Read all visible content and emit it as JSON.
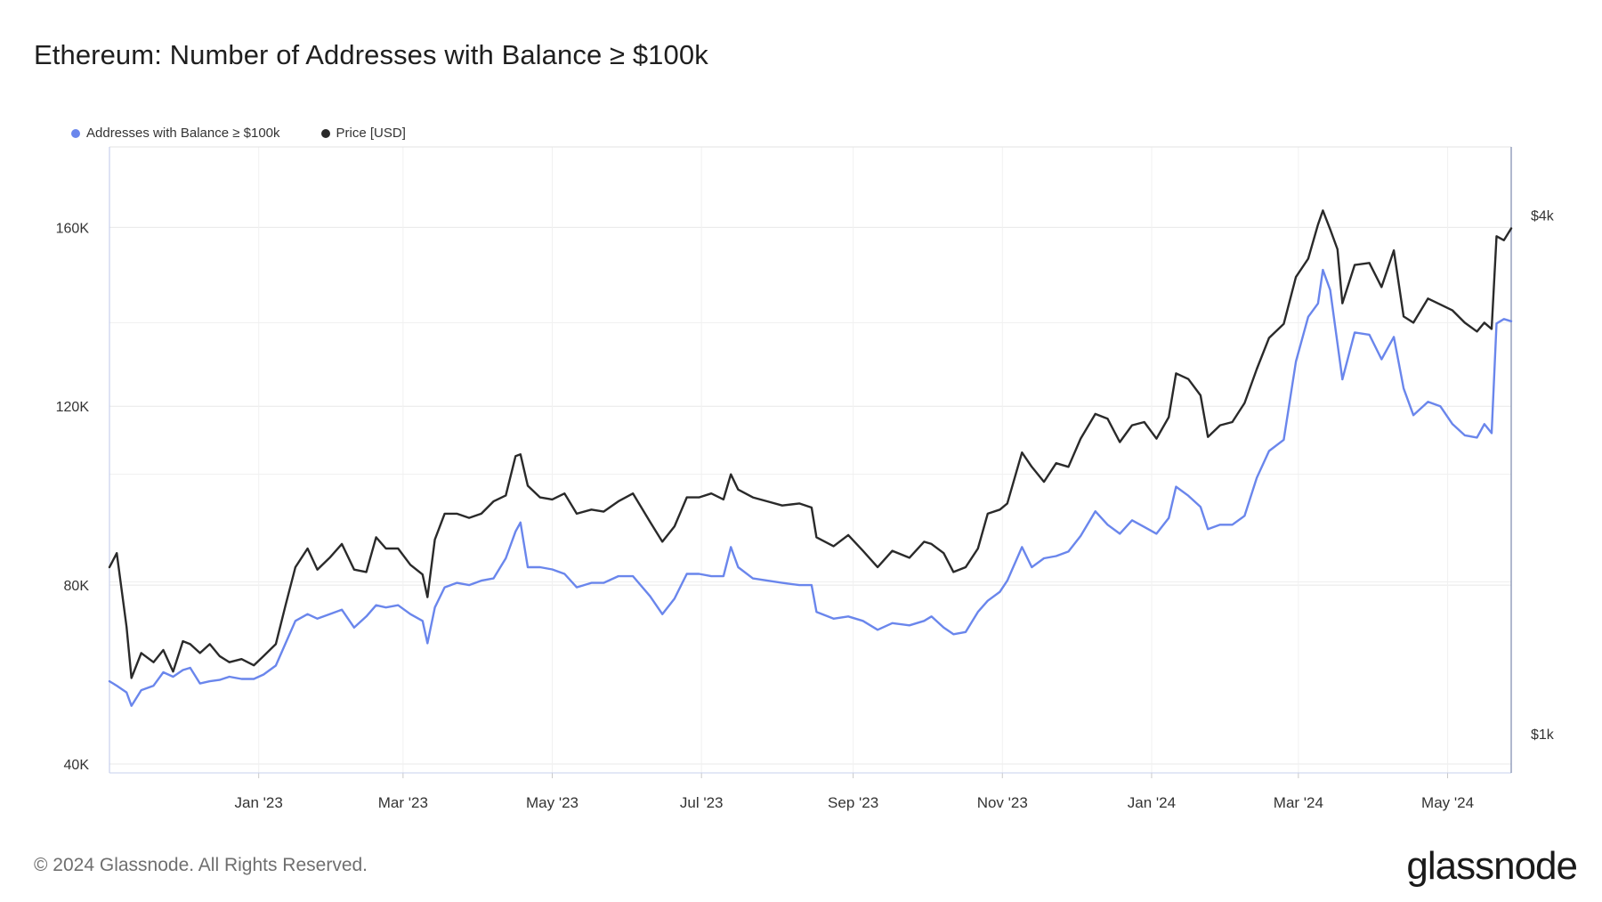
{
  "header": {
    "title": "Ethereum: Number of Addresses with Balance ≥ $100k"
  },
  "footer": {
    "copyright": "© 2024 Glassnode. All Rights Reserved.",
    "brand": "glassnode"
  },
  "colors": {
    "addresses": "#6a86ec",
    "price": "#2a2a2a",
    "grid": "#e8e8e8",
    "axis": "#c7d0ec"
  },
  "chart_data": {
    "type": "line",
    "title": "Ethereum: Number of Addresses with Balance ≥ $100k",
    "grid": true,
    "legend_position": "top-left",
    "x_ticks": [
      "Jan '23",
      "Mar '23",
      "May '23",
      "Jul '23",
      "Sep '23",
      "Nov '23",
      "Jan '24",
      "Mar '24",
      "May '24"
    ],
    "x_range": [
      "2022-11-01",
      "2024-05-27"
    ],
    "y_left": {
      "ticks": [
        40000,
        80000,
        120000,
        160000
      ],
      "tick_labels": [
        "40K",
        "80K",
        "120K",
        "160K"
      ],
      "range": [
        38000,
        178000
      ]
    },
    "y_right": {
      "ticks": [
        1000,
        4000
      ],
      "tick_labels": [
        "$1k",
        "$4k"
      ],
      "range": [
        900,
        4800
      ]
    },
    "series": [
      {
        "name": "Addresses with Balance ≥ $100k",
        "axis": "left",
        "color": "#6a86ec",
        "points": [
          [
            "2022-11-01",
            58500
          ],
          [
            "2022-11-04",
            57500
          ],
          [
            "2022-11-08",
            56000
          ],
          [
            "2022-11-10",
            53000
          ],
          [
            "2022-11-14",
            56500
          ],
          [
            "2022-11-19",
            57500
          ],
          [
            "2022-11-23",
            60500
          ],
          [
            "2022-11-27",
            59500
          ],
          [
            "2022-12-01",
            61000
          ],
          [
            "2022-12-04",
            61500
          ],
          [
            "2022-12-08",
            58000
          ],
          [
            "2022-12-12",
            58500
          ],
          [
            "2022-12-16",
            58800
          ],
          [
            "2022-12-20",
            59500
          ],
          [
            "2022-12-25",
            59000
          ],
          [
            "2022-12-30",
            59000
          ],
          [
            "2023-01-03",
            60000
          ],
          [
            "2023-01-08",
            62000
          ],
          [
            "2023-01-12",
            67000
          ],
          [
            "2023-01-16",
            72000
          ],
          [
            "2023-01-21",
            73500
          ],
          [
            "2023-01-25",
            72500
          ],
          [
            "2023-01-30",
            73500
          ],
          [
            "2023-02-04",
            74500
          ],
          [
            "2023-02-09",
            70500
          ],
          [
            "2023-02-14",
            73000
          ],
          [
            "2023-02-18",
            75500
          ],
          [
            "2023-02-22",
            75000
          ],
          [
            "2023-02-27",
            75500
          ],
          [
            "2023-03-04",
            73500
          ],
          [
            "2023-03-09",
            72000
          ],
          [
            "2023-03-11",
            67000
          ],
          [
            "2023-03-14",
            75000
          ],
          [
            "2023-03-18",
            79500
          ],
          [
            "2023-03-23",
            80500
          ],
          [
            "2023-03-28",
            80000
          ],
          [
            "2023-04-02",
            81000
          ],
          [
            "2023-04-07",
            81500
          ],
          [
            "2023-04-12",
            86000
          ],
          [
            "2023-04-16",
            92000
          ],
          [
            "2023-04-18",
            94000
          ],
          [
            "2023-04-21",
            84000
          ],
          [
            "2023-04-26",
            84000
          ],
          [
            "2023-05-01",
            83500
          ],
          [
            "2023-05-06",
            82500
          ],
          [
            "2023-05-11",
            79500
          ],
          [
            "2023-05-17",
            80500
          ],
          [
            "2023-05-22",
            80500
          ],
          [
            "2023-05-28",
            82000
          ],
          [
            "2023-06-03",
            82000
          ],
          [
            "2023-06-10",
            77500
          ],
          [
            "2023-06-15",
            73500
          ],
          [
            "2023-06-20",
            77000
          ],
          [
            "2023-06-25",
            82500
          ],
          [
            "2023-06-30",
            82500
          ],
          [
            "2023-07-05",
            82000
          ],
          [
            "2023-07-10",
            82000
          ],
          [
            "2023-07-13",
            88500
          ],
          [
            "2023-07-16",
            84000
          ],
          [
            "2023-07-22",
            81500
          ],
          [
            "2023-07-28",
            81000
          ],
          [
            "2023-08-03",
            80500
          ],
          [
            "2023-08-10",
            80000
          ],
          [
            "2023-08-15",
            80000
          ],
          [
            "2023-08-17",
            74000
          ],
          [
            "2023-08-24",
            72500
          ],
          [
            "2023-08-30",
            73000
          ],
          [
            "2023-09-05",
            72000
          ],
          [
            "2023-09-11",
            70000
          ],
          [
            "2023-09-17",
            71500
          ],
          [
            "2023-09-24",
            71000
          ],
          [
            "2023-09-30",
            72000
          ],
          [
            "2023-10-03",
            73000
          ],
          [
            "2023-10-08",
            70500
          ],
          [
            "2023-10-12",
            69000
          ],
          [
            "2023-10-17",
            69500
          ],
          [
            "2023-10-22",
            74000
          ],
          [
            "2023-10-26",
            76500
          ],
          [
            "2023-10-31",
            78500
          ],
          [
            "2023-11-03",
            81000
          ],
          [
            "2023-11-09",
            88500
          ],
          [
            "2023-11-13",
            84000
          ],
          [
            "2023-11-18",
            86000
          ],
          [
            "2023-11-23",
            86500
          ],
          [
            "2023-11-28",
            87500
          ],
          [
            "2023-12-03",
            91000
          ],
          [
            "2023-12-09",
            96500
          ],
          [
            "2023-12-14",
            93500
          ],
          [
            "2023-12-19",
            91500
          ],
          [
            "2023-12-24",
            94500
          ],
          [
            "2023-12-29",
            93000
          ],
          [
            "2024-01-03",
            91500
          ],
          [
            "2024-01-08",
            95000
          ],
          [
            "2024-01-11",
            102000
          ],
          [
            "2024-01-16",
            100000
          ],
          [
            "2024-01-21",
            97500
          ],
          [
            "2024-01-24",
            92500
          ],
          [
            "2024-01-29",
            93500
          ],
          [
            "2024-02-03",
            93500
          ],
          [
            "2024-02-08",
            95500
          ],
          [
            "2024-02-13",
            104000
          ],
          [
            "2024-02-18",
            110000
          ],
          [
            "2024-02-24",
            112500
          ],
          [
            "2024-02-29",
            130000
          ],
          [
            "2024-03-05",
            140000
          ],
          [
            "2024-03-09",
            143000
          ],
          [
            "2024-03-11",
            150500
          ],
          [
            "2024-03-14",
            146000
          ],
          [
            "2024-03-17",
            134000
          ],
          [
            "2024-03-19",
            126000
          ],
          [
            "2024-03-24",
            136500
          ],
          [
            "2024-03-30",
            136000
          ],
          [
            "2024-04-04",
            130500
          ],
          [
            "2024-04-09",
            135500
          ],
          [
            "2024-04-13",
            124000
          ],
          [
            "2024-04-17",
            118000
          ],
          [
            "2024-04-23",
            121000
          ],
          [
            "2024-04-28",
            120000
          ],
          [
            "2024-05-03",
            116000
          ],
          [
            "2024-05-08",
            113500
          ],
          [
            "2024-05-13",
            113000
          ],
          [
            "2024-05-16",
            116000
          ],
          [
            "2024-05-19",
            114000
          ],
          [
            "2024-05-21",
            138500
          ],
          [
            "2024-05-24",
            139500
          ],
          [
            "2024-05-27",
            139000
          ]
        ]
      },
      {
        "name": "Price [USD]",
        "axis": "right",
        "color": "#2a2a2a",
        "points": [
          [
            "2022-11-01",
            1560
          ],
          [
            "2022-11-04",
            1620
          ],
          [
            "2022-11-08",
            1330
          ],
          [
            "2022-11-10",
            1160
          ],
          [
            "2022-11-14",
            1240
          ],
          [
            "2022-11-19",
            1210
          ],
          [
            "2022-11-23",
            1250
          ],
          [
            "2022-11-27",
            1180
          ],
          [
            "2022-12-01",
            1280
          ],
          [
            "2022-12-04",
            1270
          ],
          [
            "2022-12-08",
            1240
          ],
          [
            "2022-12-12",
            1270
          ],
          [
            "2022-12-16",
            1230
          ],
          [
            "2022-12-20",
            1210
          ],
          [
            "2022-12-25",
            1220
          ],
          [
            "2022-12-30",
            1200
          ],
          [
            "2023-01-03",
            1230
          ],
          [
            "2023-01-08",
            1270
          ],
          [
            "2023-01-12",
            1410
          ],
          [
            "2023-01-16",
            1560
          ],
          [
            "2023-01-21",
            1640
          ],
          [
            "2023-01-25",
            1550
          ],
          [
            "2023-01-30",
            1600
          ],
          [
            "2023-02-04",
            1660
          ],
          [
            "2023-02-09",
            1550
          ],
          [
            "2023-02-14",
            1540
          ],
          [
            "2023-02-18",
            1690
          ],
          [
            "2023-02-22",
            1640
          ],
          [
            "2023-02-27",
            1640
          ],
          [
            "2023-03-04",
            1570
          ],
          [
            "2023-03-09",
            1530
          ],
          [
            "2023-03-11",
            1440
          ],
          [
            "2023-03-14",
            1680
          ],
          [
            "2023-03-18",
            1800
          ],
          [
            "2023-03-23",
            1800
          ],
          [
            "2023-03-28",
            1780
          ],
          [
            "2023-04-02",
            1800
          ],
          [
            "2023-04-07",
            1860
          ],
          [
            "2023-04-12",
            1890
          ],
          [
            "2023-04-16",
            2100
          ],
          [
            "2023-04-18",
            2110
          ],
          [
            "2023-04-21",
            1940
          ],
          [
            "2023-04-26",
            1880
          ],
          [
            "2023-05-01",
            1870
          ],
          [
            "2023-05-06",
            1900
          ],
          [
            "2023-05-11",
            1800
          ],
          [
            "2023-05-17",
            1820
          ],
          [
            "2023-05-22",
            1810
          ],
          [
            "2023-05-28",
            1860
          ],
          [
            "2023-06-03",
            1900
          ],
          [
            "2023-06-10",
            1760
          ],
          [
            "2023-06-15",
            1670
          ],
          [
            "2023-06-20",
            1740
          ],
          [
            "2023-06-25",
            1880
          ],
          [
            "2023-06-30",
            1880
          ],
          [
            "2023-07-05",
            1900
          ],
          [
            "2023-07-10",
            1870
          ],
          [
            "2023-07-13",
            2000
          ],
          [
            "2023-07-16",
            1920
          ],
          [
            "2023-07-22",
            1880
          ],
          [
            "2023-07-28",
            1860
          ],
          [
            "2023-08-03",
            1840
          ],
          [
            "2023-08-10",
            1850
          ],
          [
            "2023-08-15",
            1830
          ],
          [
            "2023-08-17",
            1690
          ],
          [
            "2023-08-24",
            1650
          ],
          [
            "2023-08-30",
            1700
          ],
          [
            "2023-09-05",
            1630
          ],
          [
            "2023-09-11",
            1560
          ],
          [
            "2023-09-17",
            1630
          ],
          [
            "2023-09-24",
            1600
          ],
          [
            "2023-09-30",
            1670
          ],
          [
            "2023-10-03",
            1660
          ],
          [
            "2023-10-08",
            1620
          ],
          [
            "2023-10-12",
            1540
          ],
          [
            "2023-10-17",
            1560
          ],
          [
            "2023-10-22",
            1640
          ],
          [
            "2023-10-26",
            1800
          ],
          [
            "2023-10-31",
            1820
          ],
          [
            "2023-11-03",
            1850
          ],
          [
            "2023-11-09",
            2120
          ],
          [
            "2023-11-13",
            2040
          ],
          [
            "2023-11-18",
            1960
          ],
          [
            "2023-11-23",
            2060
          ],
          [
            "2023-11-28",
            2040
          ],
          [
            "2023-12-03",
            2200
          ],
          [
            "2023-12-09",
            2350
          ],
          [
            "2023-12-14",
            2320
          ],
          [
            "2023-12-19",
            2180
          ],
          [
            "2023-12-24",
            2280
          ],
          [
            "2023-12-29",
            2300
          ],
          [
            "2024-01-03",
            2200
          ],
          [
            "2024-01-08",
            2330
          ],
          [
            "2024-01-11",
            2620
          ],
          [
            "2024-01-16",
            2580
          ],
          [
            "2024-01-21",
            2470
          ],
          [
            "2024-01-24",
            2210
          ],
          [
            "2024-01-29",
            2280
          ],
          [
            "2024-02-03",
            2300
          ],
          [
            "2024-02-08",
            2420
          ],
          [
            "2024-02-13",
            2650
          ],
          [
            "2024-02-18",
            2880
          ],
          [
            "2024-02-24",
            2990
          ],
          [
            "2024-02-29",
            3390
          ],
          [
            "2024-03-05",
            3560
          ],
          [
            "2024-03-09",
            3900
          ],
          [
            "2024-03-11",
            4050
          ],
          [
            "2024-03-14",
            3850
          ],
          [
            "2024-03-17",
            3650
          ],
          [
            "2024-03-19",
            3160
          ],
          [
            "2024-03-24",
            3500
          ],
          [
            "2024-03-30",
            3520
          ],
          [
            "2024-04-04",
            3300
          ],
          [
            "2024-04-09",
            3640
          ],
          [
            "2024-04-13",
            3050
          ],
          [
            "2024-04-17",
            3000
          ],
          [
            "2024-04-23",
            3200
          ],
          [
            "2024-04-28",
            3150
          ],
          [
            "2024-05-03",
            3100
          ],
          [
            "2024-05-08",
            3000
          ],
          [
            "2024-05-13",
            2930
          ],
          [
            "2024-05-16",
            3000
          ],
          [
            "2024-05-19",
            2950
          ],
          [
            "2024-05-21",
            3780
          ],
          [
            "2024-05-24",
            3740
          ],
          [
            "2024-05-27",
            3860
          ]
        ]
      }
    ]
  }
}
